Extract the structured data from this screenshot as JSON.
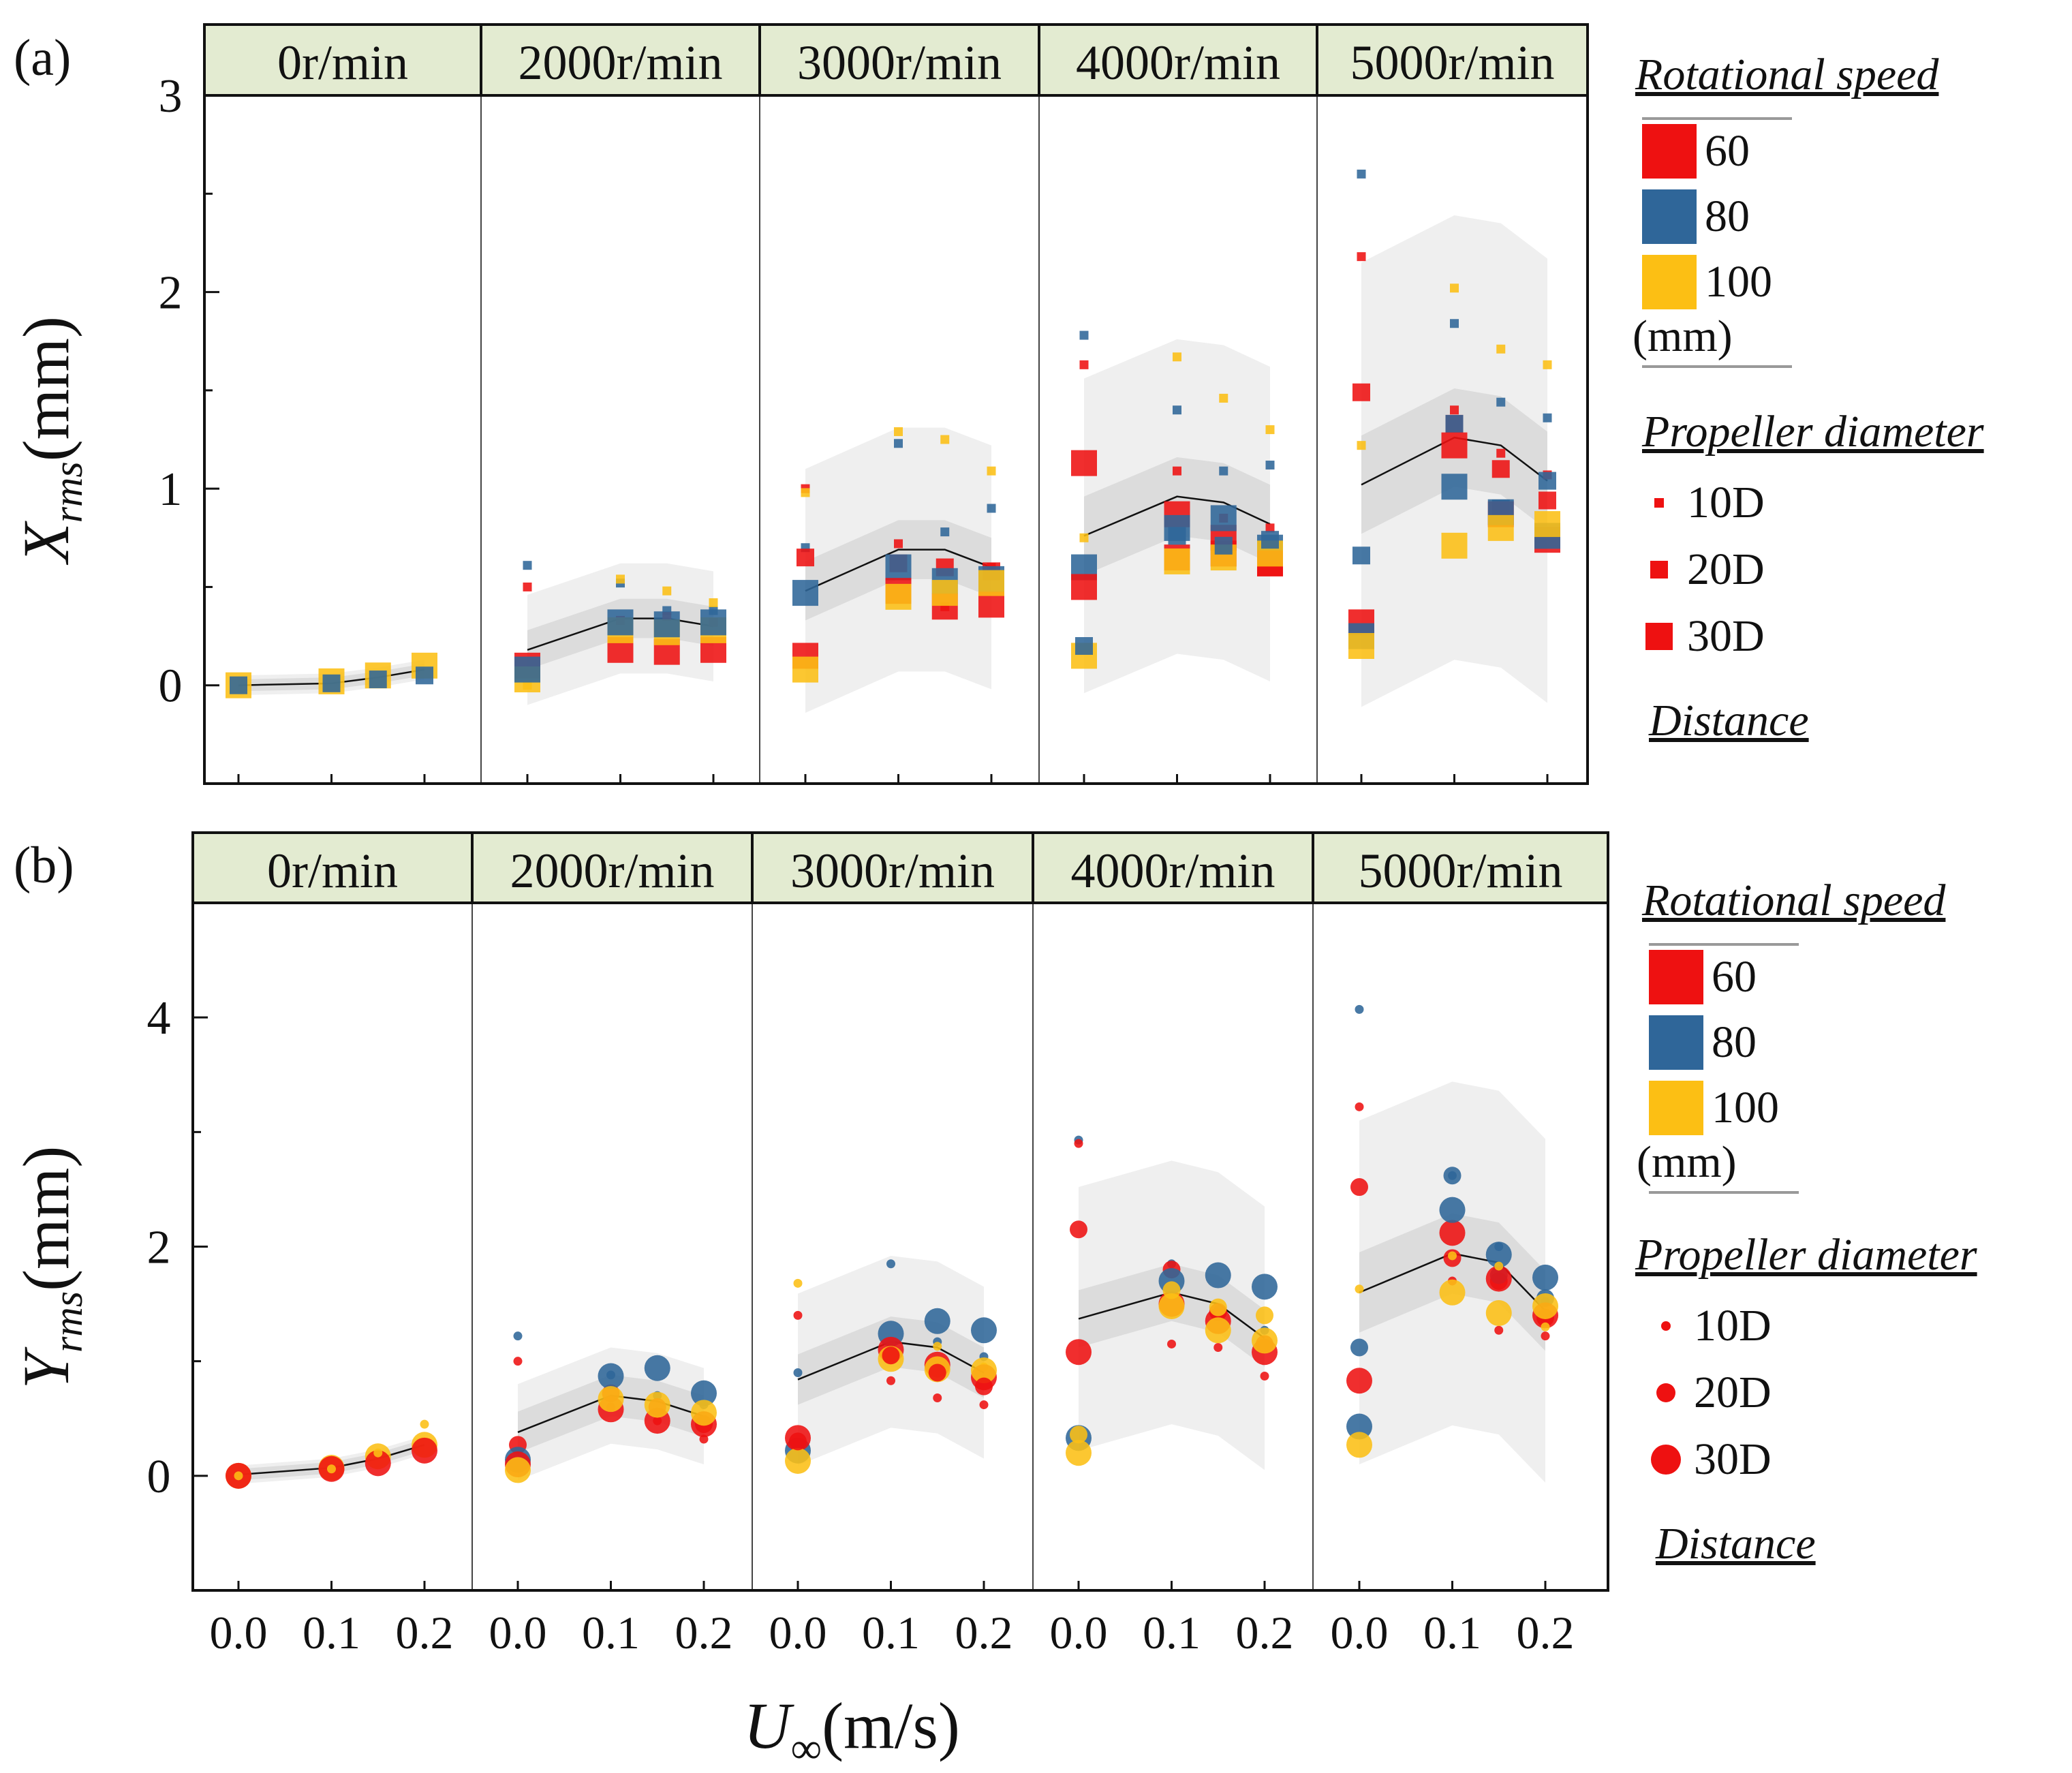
{
  "chart_data": [
    {
      "panel_label": "(a)",
      "type": "scatter",
      "marker": "square",
      "ylabel_main": "X",
      "ylabel_sub": "rms",
      "ylabel_unit": "(mm)",
      "ylim": [
        -0.5,
        3.0
      ],
      "yticks": [
        0,
        1,
        2,
        3
      ],
      "xticks": [
        "0.0",
        "0.1",
        "0.2"
      ],
      "facets": [
        "0r/min",
        "2000r/min",
        "3000r/min",
        "4000r/min",
        "5000r/min"
      ],
      "x_values": [
        0.0,
        0.1,
        0.15,
        0.2
      ],
      "fit_curves": [
        [
          0.0,
          0.01,
          0.04,
          0.08
        ],
        [
          0.18,
          0.34,
          0.34,
          0.3
        ],
        [
          0.48,
          0.69,
          0.69,
          0.6
        ],
        [
          0.76,
          0.96,
          0.93,
          0.82
        ],
        [
          1.02,
          1.26,
          1.22,
          1.04
        ]
      ],
      "band_inner_halfwidth": [
        0.03,
        0.1,
        0.15,
        0.2,
        0.25
      ],
      "band_outer_halfwidth": [
        0.05,
        0.28,
        0.62,
        0.8,
        1.13
      ],
      "series": [
        {
          "facet": 0,
          "speed": "100",
          "size": "30D",
          "values": [
            0.0,
            0.02,
            0.05,
            0.1
          ]
        },
        {
          "facet": 0,
          "speed": "80",
          "size": "20D",
          "values": [
            0.0,
            0.01,
            0.03,
            0.05
          ]
        },
        {
          "facet": 1,
          "speed": "80",
          "size": "10D",
          "values": [
            0.61,
            0.52,
            0.38,
            0.38
          ]
        },
        {
          "facet": 1,
          "speed": "60",
          "size": "10D",
          "values": [
            0.5,
            0.33,
            0.35,
            0.32
          ]
        },
        {
          "facet": 1,
          "speed": "100",
          "size": "10D",
          "values": [
            0.0,
            0.54,
            0.48,
            0.42
          ]
        },
        {
          "facet": 1,
          "speed": "60",
          "size": "30D",
          "values": [
            0.1,
            0.18,
            0.17,
            0.18
          ]
        },
        {
          "facet": 1,
          "speed": "100",
          "size": "30D",
          "values": [
            0.03,
            0.28,
            0.27,
            0.28
          ]
        },
        {
          "facet": 1,
          "speed": "80",
          "size": "30D",
          "values": [
            0.08,
            0.32,
            0.31,
            0.32
          ]
        },
        {
          "facet": 2,
          "speed": "60",
          "size": "10D",
          "values": [
            1.0,
            0.72,
            0.4,
            0.6
          ]
        },
        {
          "facet": 2,
          "speed": "80",
          "size": "10D",
          "values": [
            0.7,
            1.23,
            0.78,
            0.9
          ]
        },
        {
          "facet": 2,
          "speed": "100",
          "size": "10D",
          "values": [
            0.98,
            1.29,
            1.25,
            1.09
          ]
        },
        {
          "facet": 2,
          "speed": "60",
          "size": "20D",
          "values": [
            0.65,
            0.62,
            0.6,
            0.58
          ]
        },
        {
          "facet": 2,
          "speed": "80",
          "size": "30D",
          "values": [
            0.47,
            0.6,
            0.53,
            0.54
          ]
        },
        {
          "facet": 2,
          "speed": "60",
          "size": "30D",
          "values": [
            0.15,
            0.48,
            0.4,
            0.41
          ]
        },
        {
          "facet": 2,
          "speed": "100",
          "size": "30D",
          "values": [
            0.08,
            0.45,
            0.47,
            0.52
          ]
        },
        {
          "facet": 3,
          "speed": "80",
          "size": "10D",
          "values": [
            1.78,
            1.4,
            1.09,
            1.12
          ]
        },
        {
          "facet": 3,
          "speed": "60",
          "size": "10D",
          "values": [
            1.63,
            1.09,
            0.85,
            0.8
          ]
        },
        {
          "facet": 3,
          "speed": "100",
          "size": "10D",
          "values": [
            0.75,
            1.67,
            1.46,
            1.3
          ]
        },
        {
          "facet": 3,
          "speed": "60",
          "size": "30D",
          "values": [
            1.13,
            0.87,
            0.75,
            0.62
          ]
        },
        {
          "facet": 3,
          "speed": "80",
          "size": "30D",
          "values": [
            0.6,
            0.8,
            0.85,
            0.7
          ]
        },
        {
          "facet": 3,
          "speed": "60",
          "size": "30D",
          "values": [
            0.5,
            0.65,
            0.67,
            0.62
          ]
        },
        {
          "facet": 3,
          "speed": "100",
          "size": "30D",
          "values": [
            0.15,
            0.63,
            0.65,
            0.67
          ]
        },
        {
          "facet": 3,
          "speed": "80",
          "size": "20D",
          "values": [
            0.2,
            0.76,
            0.71,
            0.74
          ]
        },
        {
          "facet": 4,
          "speed": "80",
          "size": "10D",
          "values": [
            2.6,
            1.84,
            1.44,
            1.36
          ]
        },
        {
          "facet": 4,
          "speed": "60",
          "size": "10D",
          "values": [
            2.18,
            1.4,
            1.18,
            1.07
          ]
        },
        {
          "facet": 4,
          "speed": "100",
          "size": "10D",
          "values": [
            1.22,
            2.02,
            1.71,
            1.63
          ]
        },
        {
          "facet": 4,
          "speed": "60",
          "size": "20D",
          "values": [
            1.49,
            1.33,
            1.1,
            0.94
          ]
        },
        {
          "facet": 4,
          "speed": "80",
          "size": "20D",
          "values": [
            0.66,
            1.33,
            0.9,
            1.04
          ]
        },
        {
          "facet": 4,
          "speed": "60",
          "size": "30D",
          "values": [
            0.32,
            1.22,
            0.87,
            0.74
          ]
        },
        {
          "facet": 4,
          "speed": "80",
          "size": "30D",
          "values": [
            0.25,
            1.01,
            0.88,
            0.76
          ]
        },
        {
          "facet": 4,
          "speed": "100",
          "size": "30D",
          "values": [
            0.2,
            0.71,
            0.8,
            0.82
          ]
        }
      ]
    },
    {
      "panel_label": "(b)",
      "type": "scatter",
      "marker": "circle",
      "ylabel_main": "Y",
      "ylabel_sub": "rms",
      "ylabel_unit": "(mm)",
      "ylim": [
        -1.0,
        5.0
      ],
      "yticks": [
        0,
        2,
        4
      ],
      "xticks": [
        "0.0",
        "0.1",
        "0.2"
      ],
      "xlabel_main": "U",
      "xlabel_sub": "∞",
      "xlabel_unit": "(m/s)",
      "facets": [
        "0r/min",
        "2000r/min",
        "3000r/min",
        "4000r/min",
        "5000r/min"
      ],
      "x_values": [
        0.0,
        0.1,
        0.15,
        0.2
      ],
      "fit_curves": [
        [
          0.01,
          0.07,
          0.15,
          0.27
        ],
        [
          0.38,
          0.7,
          0.65,
          0.52
        ],
        [
          0.84,
          1.17,
          1.12,
          0.9
        ],
        [
          1.37,
          1.6,
          1.5,
          1.2
        ],
        [
          1.6,
          1.94,
          1.86,
          1.44
        ]
      ],
      "band_inner_halfwidth": [
        0.05,
        0.18,
        0.22,
        0.25,
        0.35
      ],
      "band_outer_halfwidth": [
        0.08,
        0.42,
        0.75,
        1.15,
        1.5
      ],
      "series": [
        {
          "facet": 0,
          "speed": "100",
          "size": "30D",
          "values": [
            0.0,
            0.07,
            0.17,
            0.27
          ]
        },
        {
          "facet": 0,
          "speed": "60",
          "size": "30D",
          "values": [
            0.0,
            0.06,
            0.11,
            0.22
          ]
        },
        {
          "facet": 0,
          "speed": "100",
          "size": "10D",
          "values": [
            0.0,
            0.06,
            0.2,
            0.45
          ]
        },
        {
          "facet": 1,
          "speed": "80",
          "size": "10D",
          "values": [
            1.22,
            0.88,
            0.7,
            0.62
          ]
        },
        {
          "facet": 1,
          "speed": "60",
          "size": "10D",
          "values": [
            1.0,
            0.6,
            0.48,
            0.32
          ]
        },
        {
          "facet": 1,
          "speed": "60",
          "size": "20D",
          "values": [
            0.27,
            0.72,
            0.6,
            0.45
          ]
        },
        {
          "facet": 1,
          "speed": "80",
          "size": "30D",
          "values": [
            0.14,
            0.87,
            0.94,
            0.72
          ]
        },
        {
          "facet": 1,
          "speed": "60",
          "size": "30D",
          "values": [
            0.1,
            0.58,
            0.48,
            0.45
          ]
        },
        {
          "facet": 1,
          "speed": "100",
          "size": "30D",
          "values": [
            0.05,
            0.67,
            0.62,
            0.55
          ]
        },
        {
          "facet": 2,
          "speed": "80",
          "size": "10D",
          "values": [
            0.9,
            1.85,
            1.17,
            1.04
          ]
        },
        {
          "facet": 2,
          "speed": "60",
          "size": "10D",
          "values": [
            1.4,
            0.83,
            0.68,
            0.62
          ]
        },
        {
          "facet": 2,
          "speed": "100",
          "size": "10D",
          "values": [
            1.68,
            1.16,
            1.13,
            0.95
          ]
        },
        {
          "facet": 2,
          "speed": "80",
          "size": "30D",
          "values": [
            0.22,
            1.24,
            1.35,
            1.27
          ]
        },
        {
          "facet": 2,
          "speed": "60",
          "size": "30D",
          "values": [
            0.33,
            1.1,
            0.97,
            0.86
          ]
        },
        {
          "facet": 2,
          "speed": "100",
          "size": "30D",
          "values": [
            0.13,
            1.02,
            0.93,
            0.92
          ]
        },
        {
          "facet": 2,
          "speed": "60",
          "size": "20D",
          "values": [
            0.3,
            1.05,
            0.9,
            0.78
          ]
        },
        {
          "facet": 3,
          "speed": "80",
          "size": "10D",
          "values": [
            2.93,
            1.85,
            1.45,
            1.27
          ]
        },
        {
          "facet": 3,
          "speed": "60",
          "size": "10D",
          "values": [
            2.9,
            1.15,
            1.12,
            0.87
          ]
        },
        {
          "facet": 3,
          "speed": "60",
          "size": "20D",
          "values": [
            2.15,
            1.8,
            1.43,
            1.15
          ]
        },
        {
          "facet": 3,
          "speed": "60",
          "size": "30D",
          "values": [
            1.08,
            1.5,
            1.35,
            1.08
          ]
        },
        {
          "facet": 3,
          "speed": "80",
          "size": "30D",
          "values": [
            0.33,
            1.7,
            1.75,
            1.65
          ]
        },
        {
          "facet": 3,
          "speed": "100",
          "size": "30D",
          "values": [
            0.2,
            1.48,
            1.27,
            1.18
          ]
        },
        {
          "facet": 3,
          "speed": "100",
          "size": "20D",
          "values": [
            0.36,
            1.62,
            1.47,
            1.4
          ]
        },
        {
          "facet": 4,
          "speed": "80",
          "size": "10D",
          "values": [
            4.07,
            2.62,
            2.0,
            1.52
          ]
        },
        {
          "facet": 4,
          "speed": "60",
          "size": "10D",
          "values": [
            3.22,
            1.7,
            1.27,
            1.22
          ]
        },
        {
          "facet": 4,
          "speed": "60",
          "size": "20D",
          "values": [
            2.52,
            1.9,
            1.7,
            1.38
          ]
        },
        {
          "facet": 4,
          "speed": "80",
          "size": "20D",
          "values": [
            1.12,
            2.62,
            1.75,
            1.55
          ]
        },
        {
          "facet": 4,
          "speed": "60",
          "size": "30D",
          "values": [
            0.83,
            2.12,
            1.72,
            1.4
          ]
        },
        {
          "facet": 4,
          "speed": "80",
          "size": "30D",
          "values": [
            0.43,
            2.32,
            1.93,
            1.73
          ]
        },
        {
          "facet": 4,
          "speed": "100",
          "size": "30D",
          "values": [
            0.27,
            1.6,
            1.42,
            1.48
          ]
        },
        {
          "facet": 4,
          "speed": "100",
          "size": "10D",
          "values": [
            1.63,
            1.92,
            1.83,
            1.3
          ]
        }
      ]
    }
  ],
  "colors": {
    "60": "#ee1111",
    "80": "#2f6699",
    "100": "#fcbf14",
    "header_bg": "#e3ebd1",
    "band_outer": "#efefef",
    "band_inner": "#dcdcdc"
  },
  "legend": {
    "rotational_speed_title": "Rotational speed",
    "speed_items": [
      "60",
      "80",
      "100"
    ],
    "unit": "(mm)",
    "diameter_title": "Propeller diameter",
    "diameter_items": [
      "10D",
      "20D",
      "30D"
    ],
    "distance_title": "Distance"
  }
}
